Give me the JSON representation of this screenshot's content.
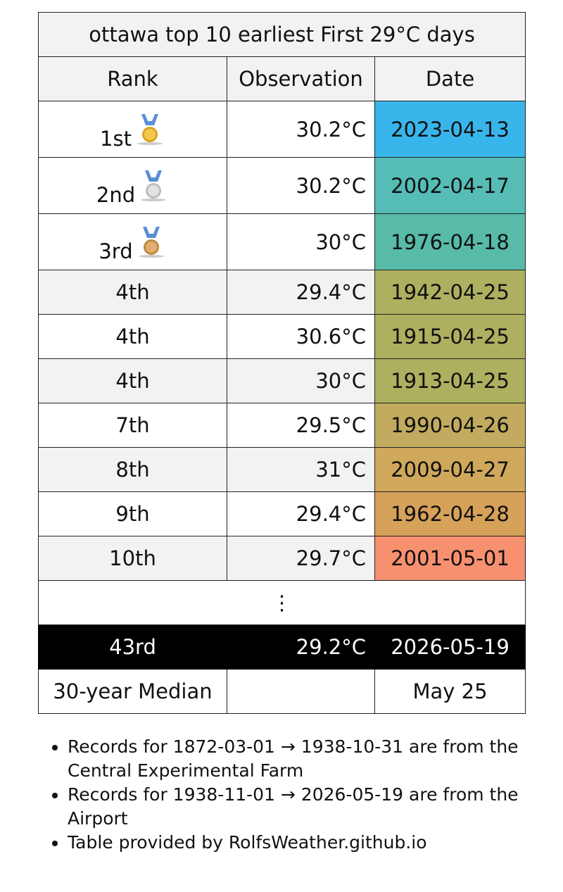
{
  "table": {
    "title": "ottawa top 10 earliest First 29°C days",
    "headers": [
      "Rank",
      "Observation",
      "Date"
    ],
    "rows": [
      {
        "rank": "1st",
        "observation": "30.2°C",
        "date": "2023-04-13",
        "date_color": "#38b6ec"
      },
      {
        "rank": "2nd",
        "observation": "30.2°C",
        "date": "2002-04-17",
        "date_color": "#55bcb6"
      },
      {
        "rank": "3rd",
        "observation": "30°C",
        "date": "1976-04-18",
        "date_color": "#58bba8"
      },
      {
        "rank": "4th",
        "observation": "29.4°C",
        "date": "1942-04-25",
        "date_color": "#adb05f"
      },
      {
        "rank": "4th",
        "observation": "30.6°C",
        "date": "1915-04-25",
        "date_color": "#adb05f"
      },
      {
        "rank": "4th",
        "observation": "30°C",
        "date": "1913-04-25",
        "date_color": "#adb05f"
      },
      {
        "rank": "7th",
        "observation": "29.5°C",
        "date": "1990-04-26",
        "date_color": "#c2ab5f"
      },
      {
        "rank": "8th",
        "observation": "31°C",
        "date": "2009-04-27",
        "date_color": "#cfa85b"
      },
      {
        "rank": "9th",
        "observation": "29.4°C",
        "date": "1962-04-28",
        "date_color": "#d6a159"
      },
      {
        "rank": "10th",
        "observation": "29.7°C",
        "date": "2001-05-01",
        "date_color": "#f7906f"
      }
    ],
    "ellipsis": "⋮",
    "current": {
      "rank": "43rd",
      "observation": "29.2°C",
      "date": "2026-05-19"
    },
    "median": {
      "rank": "30-year Median",
      "date": "May 25"
    }
  },
  "notes": [
    "Records for 1872-03-01 → 1938-10-31 are from the Central Experimental Farm",
    "Records for 1938-11-01 → 2026-05-19 are from the Airport",
    "Table provided by RolfsWeather.github.io"
  ]
}
